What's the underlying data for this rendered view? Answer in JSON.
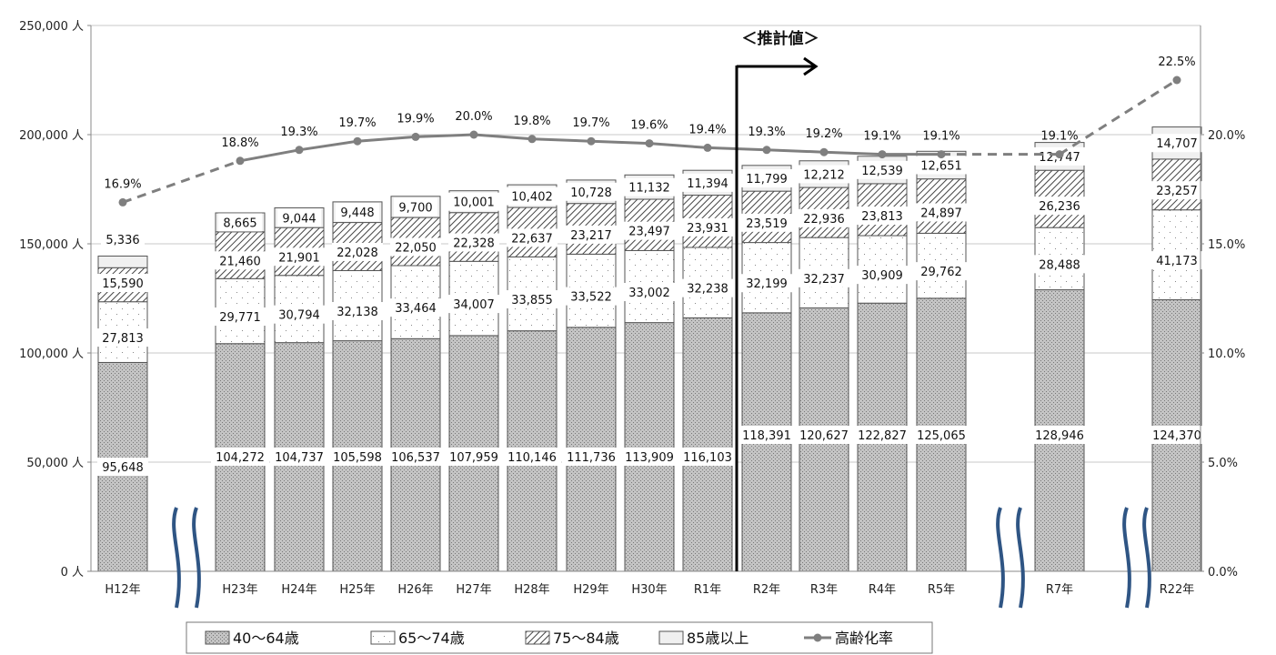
{
  "chart_data": {
    "type": "bar",
    "stacked": true,
    "categories": [
      "H12年",
      "H23年",
      "H24年",
      "H25年",
      "H26年",
      "H27年",
      "H28年",
      "H29年",
      "H30年",
      "R1年",
      "R2年",
      "R3年",
      "R4年",
      "R5年",
      "R7年",
      "R22年"
    ],
    "series": [
      {
        "name": "40～64歳",
        "pattern": "dotted-dark",
        "values": [
          95648,
          104272,
          104737,
          105598,
          106537,
          107959,
          110146,
          111736,
          113909,
          116103,
          118391,
          120627,
          122827,
          125065,
          128946,
          124370
        ],
        "labels": [
          "95,648",
          "104,272",
          "104,737",
          "105,598",
          "106,537",
          "107,959",
          "110,146",
          "111,736",
          "113,909",
          "116,103",
          "118,391",
          "120,627",
          "122,827",
          "125,065",
          "128,946",
          "124,370"
        ]
      },
      {
        "name": "65～74歳",
        "pattern": "dotted-light",
        "values": [
          27813,
          29771,
          30794,
          32138,
          33464,
          34007,
          33855,
          33522,
          33002,
          32238,
          32199,
          32237,
          30909,
          29762,
          28488,
          41173
        ],
        "labels": [
          "27,813",
          "29,771",
          "30,794",
          "32,138",
          "33,464",
          "34,007",
          "33,855",
          "33,522",
          "33,002",
          "32,238",
          "32,199",
          "32,237",
          "30,909",
          "29,762",
          "28,488",
          "41,173"
        ]
      },
      {
        "name": "75～84歳",
        "pattern": "hatch",
        "values": [
          15590,
          21460,
          21901,
          22028,
          22050,
          22328,
          22637,
          23217,
          23497,
          23931,
          23519,
          22936,
          23813,
          24897,
          26236,
          23257
        ],
        "labels": [
          "15,590",
          "21,460",
          "21,901",
          "22,028",
          "22,050",
          "22,328",
          "22,637",
          "23,217",
          "23,497",
          "23,931",
          "23,519",
          "22,936",
          "23,813",
          "24,897",
          "26,236",
          "23,257"
        ]
      },
      {
        "name": "85歳以上",
        "pattern": "light-gray",
        "values": [
          5336,
          8665,
          9044,
          9448,
          9700,
          10001,
          10402,
          10728,
          11132,
          11394,
          11799,
          12212,
          12539,
          12651,
          12747,
          14707
        ],
        "labels": [
          "5,336",
          "8,665",
          "9,044",
          "9,448",
          "9,700",
          "10,001",
          "10,402",
          "10,728",
          "11,132",
          "11,394",
          "11,799",
          "12,212",
          "12,539",
          "12,651",
          "12,747",
          "14,707"
        ]
      }
    ],
    "line_series": {
      "name": "高齢化率",
      "values": [
        16.9,
        18.8,
        19.3,
        19.7,
        19.9,
        20.0,
        19.8,
        19.7,
        19.6,
        19.4,
        19.3,
        19.2,
        19.1,
        19.1,
        19.1,
        22.5
      ],
      "labels": [
        "16.9%",
        "18.8%",
        "19.3%",
        "19.7%",
        "19.9%",
        "20.0%",
        "19.8%",
        "19.7%",
        "19.6%",
        "19.4%",
        "19.3%",
        "19.2%",
        "19.1%",
        "19.1%",
        "19.1%",
        "22.5%"
      ],
      "dashed_segments": [
        [
          0,
          1
        ],
        [
          13,
          14
        ],
        [
          14,
          15
        ]
      ]
    },
    "y_left": {
      "min": 0,
      "max": 250000,
      "ticks": [
        "0 人",
        "50,000 人",
        "100,000 人",
        "150,000 人",
        "200,000 人",
        "250,000 人"
      ]
    },
    "y_right": {
      "min": 0,
      "max": 25,
      "ticks": [
        "0.0%",
        "5.0%",
        "10.0%",
        "15.0%",
        "20.0%"
      ]
    },
    "grid": true,
    "legend_position": "bottom",
    "annotation": {
      "text": "＜推計値＞",
      "divider_after": "R1年"
    },
    "axis_breaks_after": [
      "H12年",
      "R5年",
      "R7年"
    ]
  }
}
